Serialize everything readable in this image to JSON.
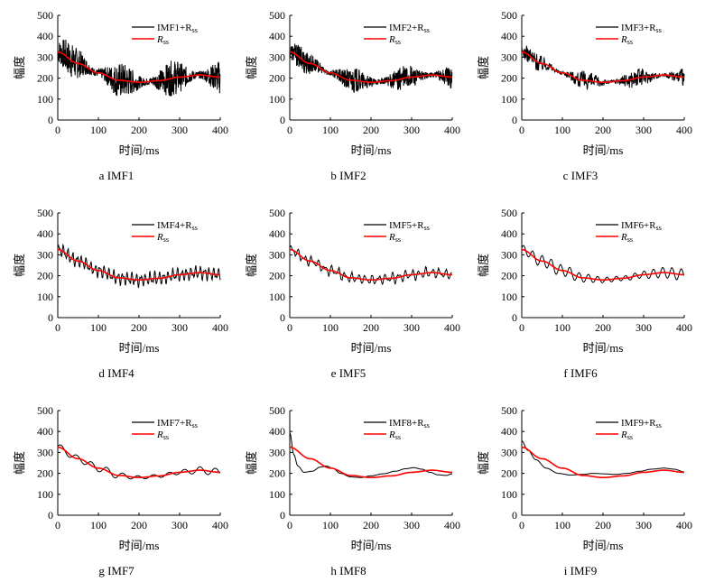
{
  "figure_caption_hidden": "",
  "chart_data": [
    {
      "type": "line",
      "panel_label": "a  IMF1",
      "legend": {
        "detail": "IMF1+R",
        "detail_sub": "ss",
        "trend": "R",
        "trend_sub": "ss"
      },
      "xlabel": "时间/ms",
      "ylabel": "幅度",
      "x_ticks": [
        "0",
        "100",
        "200",
        "300",
        "400"
      ],
      "y_ticks": [
        "0",
        "100",
        "200",
        "300",
        "400",
        "500"
      ],
      "xlim": [
        0,
        400
      ],
      "ylim": [
        0,
        500
      ],
      "noise_amp": 85,
      "noise_freq": [
        0.9,
        1.35
      ],
      "series": [
        {
          "name": "IMF1+Rss",
          "color": "#000000"
        },
        {
          "name": "Rss",
          "color": "#ff0000",
          "trend_points": [
            [
              0,
              325
            ],
            [
              50,
              270
            ],
            [
              100,
              225
            ],
            [
              150,
              190
            ],
            [
              200,
              180
            ],
            [
              250,
              188
            ],
            [
              300,
              205
            ],
            [
              350,
              215
            ],
            [
              400,
              205
            ]
          ]
        }
      ]
    },
    {
      "type": "line",
      "panel_label": "b  IMF2",
      "legend": {
        "detail": "IMF2+R",
        "detail_sub": "ss",
        "trend": "R",
        "trend_sub": "ss"
      },
      "xlabel": "时间/ms",
      "ylabel": "幅度",
      "x_ticks": [
        "0",
        "100",
        "200",
        "300",
        "400"
      ],
      "y_ticks": [
        "0",
        "100",
        "200",
        "300",
        "400",
        "500"
      ],
      "xlim": [
        0,
        400
      ],
      "ylim": [
        0,
        500
      ],
      "noise_amp": 60,
      "noise_freq": [
        0.6,
        0.95
      ],
      "series": [
        {
          "name": "IMF2+Rss",
          "color": "#000000"
        },
        {
          "name": "Rss",
          "color": "#ff0000",
          "trend_points": [
            [
              0,
              325
            ],
            [
              50,
              270
            ],
            [
              100,
              225
            ],
            [
              150,
              190
            ],
            [
              200,
              180
            ],
            [
              250,
              188
            ],
            [
              300,
              205
            ],
            [
              350,
              215
            ],
            [
              400,
              205
            ]
          ]
        }
      ]
    },
    {
      "type": "line",
      "panel_label": "c  IMF3",
      "legend": {
        "detail": "IMF3+R",
        "detail_sub": "ss",
        "trend": "R",
        "trend_sub": "ss"
      },
      "xlabel": "时间/ms",
      "ylabel": "幅度",
      "x_ticks": [
        "0",
        "100",
        "200",
        "300",
        "400"
      ],
      "y_ticks": [
        "0",
        "100",
        "200",
        "300",
        "400",
        "500"
      ],
      "xlim": [
        0,
        400
      ],
      "ylim": [
        0,
        500
      ],
      "noise_amp": 45,
      "noise_freq": [
        0.42,
        0.7
      ],
      "series": [
        {
          "name": "IMF3+Rss",
          "color": "#000000"
        },
        {
          "name": "Rss",
          "color": "#ff0000",
          "trend_points": [
            [
              0,
              325
            ],
            [
              50,
              270
            ],
            [
              100,
              225
            ],
            [
              150,
              190
            ],
            [
              200,
              180
            ],
            [
              250,
              188
            ],
            [
              300,
              205
            ],
            [
              350,
              215
            ],
            [
              400,
              205
            ]
          ]
        }
      ]
    },
    {
      "type": "line",
      "panel_label": "d  IMF4",
      "legend": {
        "detail": "IMF4+R",
        "detail_sub": "ss",
        "trend": "R",
        "trend_sub": "ss"
      },
      "xlabel": "时间/ms",
      "ylabel": "幅度",
      "x_ticks": [
        "0",
        "100",
        "200",
        "300",
        "400"
      ],
      "y_ticks": [
        "0",
        "100",
        "200",
        "300",
        "400",
        "500"
      ],
      "xlim": [
        0,
        400
      ],
      "ylim": [
        0,
        500
      ],
      "noise_amp": 38,
      "noise_freq": [
        0.28,
        0.5
      ],
      "series": [
        {
          "name": "IMF4+Rss",
          "color": "#000000"
        },
        {
          "name": "Rss",
          "color": "#ff0000",
          "trend_points": [
            [
              0,
              325
            ],
            [
              50,
              270
            ],
            [
              100,
              225
            ],
            [
              150,
              190
            ],
            [
              200,
              180
            ],
            [
              250,
              188
            ],
            [
              300,
              205
            ],
            [
              350,
              215
            ],
            [
              400,
              205
            ]
          ]
        }
      ]
    },
    {
      "type": "line",
      "panel_label": "e  IMF5",
      "legend": {
        "detail": "IMF5+R",
        "detail_sub": "ss",
        "trend": "R",
        "trend_sub": "ss"
      },
      "xlabel": "时间/ms",
      "ylabel": "幅度",
      "x_ticks": [
        "0",
        "100",
        "200",
        "300",
        "400"
      ],
      "y_ticks": [
        "0",
        "100",
        "200",
        "300",
        "400",
        "500"
      ],
      "xlim": [
        0,
        400
      ],
      "ylim": [
        0,
        500
      ],
      "noise_amp": 30,
      "noise_freq": [
        0.19,
        0.31
      ],
      "series": [
        {
          "name": "IMF5+Rss",
          "color": "#000000"
        },
        {
          "name": "Rss",
          "color": "#ff0000",
          "trend_points": [
            [
              0,
              325
            ],
            [
              50,
              270
            ],
            [
              100,
              225
            ],
            [
              150,
              190
            ],
            [
              200,
              180
            ],
            [
              250,
              188
            ],
            [
              300,
              205
            ],
            [
              350,
              215
            ],
            [
              400,
              205
            ]
          ]
        }
      ]
    },
    {
      "type": "line",
      "panel_label": "f  IMF6",
      "legend": {
        "detail": "IMF6+R",
        "detail_sub": "ss",
        "trend": "R",
        "trend_sub": "ss"
      },
      "xlabel": "时间/ms",
      "ylabel": "幅度",
      "x_ticks": [
        "0",
        "100",
        "200",
        "300",
        "400"
      ],
      "y_ticks": [
        "0",
        "100",
        "200",
        "300",
        "400",
        "500"
      ],
      "xlim": [
        0,
        400
      ],
      "ylim": [
        0,
        500
      ],
      "noise_amp": 28,
      "noise_freq": [
        0.125,
        0.0
      ],
      "series": [
        {
          "name": "IMF6+Rss",
          "color": "#000000"
        },
        {
          "name": "Rss",
          "color": "#ff0000",
          "trend_points": [
            [
              0,
              325
            ],
            [
              50,
              270
            ],
            [
              100,
              225
            ],
            [
              150,
              190
            ],
            [
              200,
              180
            ],
            [
              250,
              188
            ],
            [
              300,
              205
            ],
            [
              350,
              215
            ],
            [
              400,
              205
            ]
          ]
        }
      ]
    },
    {
      "type": "line",
      "panel_label": "g  IMF7",
      "legend": {
        "detail": "IMF7+R",
        "detail_sub": "ss",
        "trend": "R",
        "trend_sub": "ss"
      },
      "xlabel": "时间/ms",
      "ylabel": "幅度",
      "x_ticks": [
        "0",
        "100",
        "200",
        "300",
        "400"
      ],
      "y_ticks": [
        "0",
        "100",
        "200",
        "300",
        "400",
        "500"
      ],
      "xlim": [
        0,
        400
      ],
      "ylim": [
        0,
        500
      ],
      "noise_amp": 18,
      "noise_freq": [
        0.075,
        0.0
      ],
      "series": [
        {
          "name": "IMF7+Rss",
          "color": "#000000"
        },
        {
          "name": "Rss",
          "color": "#ff0000",
          "trend_points": [
            [
              0,
              325
            ],
            [
              50,
              270
            ],
            [
              100,
              225
            ],
            [
              150,
              190
            ],
            [
              200,
              180
            ],
            [
              250,
              188
            ],
            [
              300,
              205
            ],
            [
              350,
              215
            ],
            [
              400,
              205
            ]
          ]
        }
      ]
    },
    {
      "type": "line",
      "panel_label": "h  IMF8",
      "legend": {
        "detail": "IMF8+R",
        "detail_sub": "ss",
        "trend": "R",
        "trend_sub": "ss"
      },
      "xlabel": "时间/ms",
      "ylabel": "幅度",
      "x_ticks": [
        "0",
        "100",
        "200",
        "300",
        "400"
      ],
      "y_ticks": [
        "0",
        "100",
        "200",
        "300",
        "400",
        "500"
      ],
      "xlim": [
        0,
        400
      ],
      "ylim": [
        0,
        500
      ],
      "noise_amp": 0,
      "noise_freq": [
        0,
        0
      ],
      "series": [
        {
          "name": "IMF8+Rss",
          "color": "#000000",
          "points": [
            [
              0,
              395
            ],
            [
              10,
              290
            ],
            [
              20,
              235
            ],
            [
              35,
              205
            ],
            [
              55,
              210
            ],
            [
              75,
              230
            ],
            [
              90,
              235
            ],
            [
              105,
              225
            ],
            [
              125,
              200
            ],
            [
              150,
              183
            ],
            [
              175,
              180
            ],
            [
              200,
              188
            ],
            [
              230,
              198
            ],
            [
              260,
              210
            ],
            [
              285,
              222
            ],
            [
              305,
              227
            ],
            [
              325,
              220
            ],
            [
              345,
              205
            ],
            [
              365,
              193
            ],
            [
              385,
              190
            ],
            [
              400,
              198
            ]
          ]
        },
        {
          "name": "Rss",
          "color": "#ff0000",
          "trend_points": [
            [
              0,
              325
            ],
            [
              50,
              270
            ],
            [
              100,
              225
            ],
            [
              150,
              190
            ],
            [
              200,
              180
            ],
            [
              250,
              188
            ],
            [
              300,
              205
            ],
            [
              350,
              215
            ],
            [
              400,
              205
            ]
          ]
        }
      ]
    },
    {
      "type": "line",
      "panel_label": "i  IMF9",
      "legend": {
        "detail": "IMF9+R",
        "detail_sub": "ss",
        "trend": "R",
        "trend_sub": "ss"
      },
      "xlabel": "时间/ms",
      "ylabel": "幅度",
      "x_ticks": [
        "0",
        "100",
        "200",
        "300",
        "400"
      ],
      "y_ticks": [
        "0",
        "100",
        "200",
        "300",
        "400",
        "500"
      ],
      "xlim": [
        0,
        400
      ],
      "ylim": [
        0,
        500
      ],
      "noise_amp": 0,
      "noise_freq": [
        0,
        0
      ],
      "series": [
        {
          "name": "IMF9+Rss",
          "color": "#000000",
          "points": [
            [
              0,
              355
            ],
            [
              15,
              310
            ],
            [
              35,
              265
            ],
            [
              60,
              225
            ],
            [
              90,
              200
            ],
            [
              120,
              192
            ],
            [
              150,
              195
            ],
            [
              175,
              200
            ],
            [
              200,
              198
            ],
            [
              230,
              195
            ],
            [
              260,
              200
            ],
            [
              290,
              210
            ],
            [
              320,
              220
            ],
            [
              350,
              225
            ],
            [
              375,
              220
            ],
            [
              400,
              207
            ]
          ]
        },
        {
          "name": "Rss",
          "color": "#ff0000",
          "trend_points": [
            [
              0,
              325
            ],
            [
              50,
              270
            ],
            [
              100,
              225
            ],
            [
              150,
              190
            ],
            [
              200,
              180
            ],
            [
              250,
              188
            ],
            [
              300,
              205
            ],
            [
              350,
              215
            ],
            [
              400,
              205
            ]
          ]
        }
      ]
    }
  ]
}
